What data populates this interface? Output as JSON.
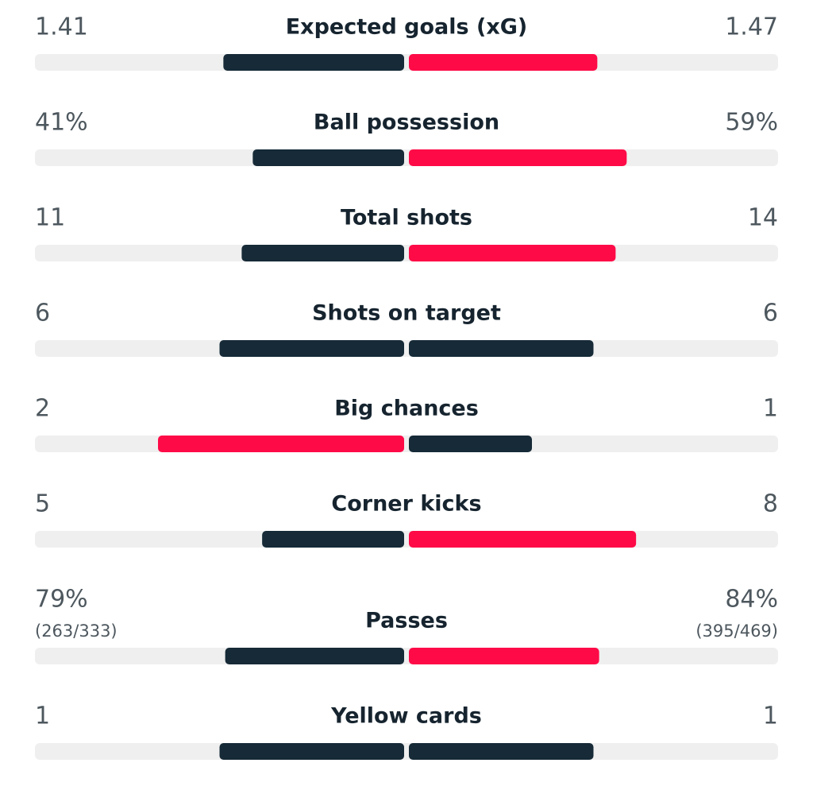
{
  "colors": {
    "leading": "#fe0a47",
    "other": "#162a37",
    "track": "#efefef"
  },
  "rows": [
    {
      "label": "Expected goals (xG)",
      "home": 1.41,
      "away": 1.47
    },
    {
      "label": "Ball possession",
      "home": {
        "value": 41,
        "label": "41%"
      },
      "away": {
        "value": 59,
        "label": "59%"
      }
    },
    {
      "label": "Total shots",
      "home": 11,
      "away": 14
    },
    {
      "label": "Shots on target",
      "home": 6,
      "away": 6
    },
    {
      "label": "Big chances",
      "home": 2,
      "away": 1
    },
    {
      "label": "Corner kicks",
      "home": 5,
      "away": 8
    },
    {
      "label": "Passes",
      "home": {
        "value": 79,
        "label": "79%"
      },
      "away": {
        "value": 84,
        "label": "84%"
      },
      "home_detail": "(263/333)",
      "away_detail": "(395/469)"
    },
    {
      "label": "Yellow cards",
      "home": 1,
      "away": 1
    }
  ]
}
